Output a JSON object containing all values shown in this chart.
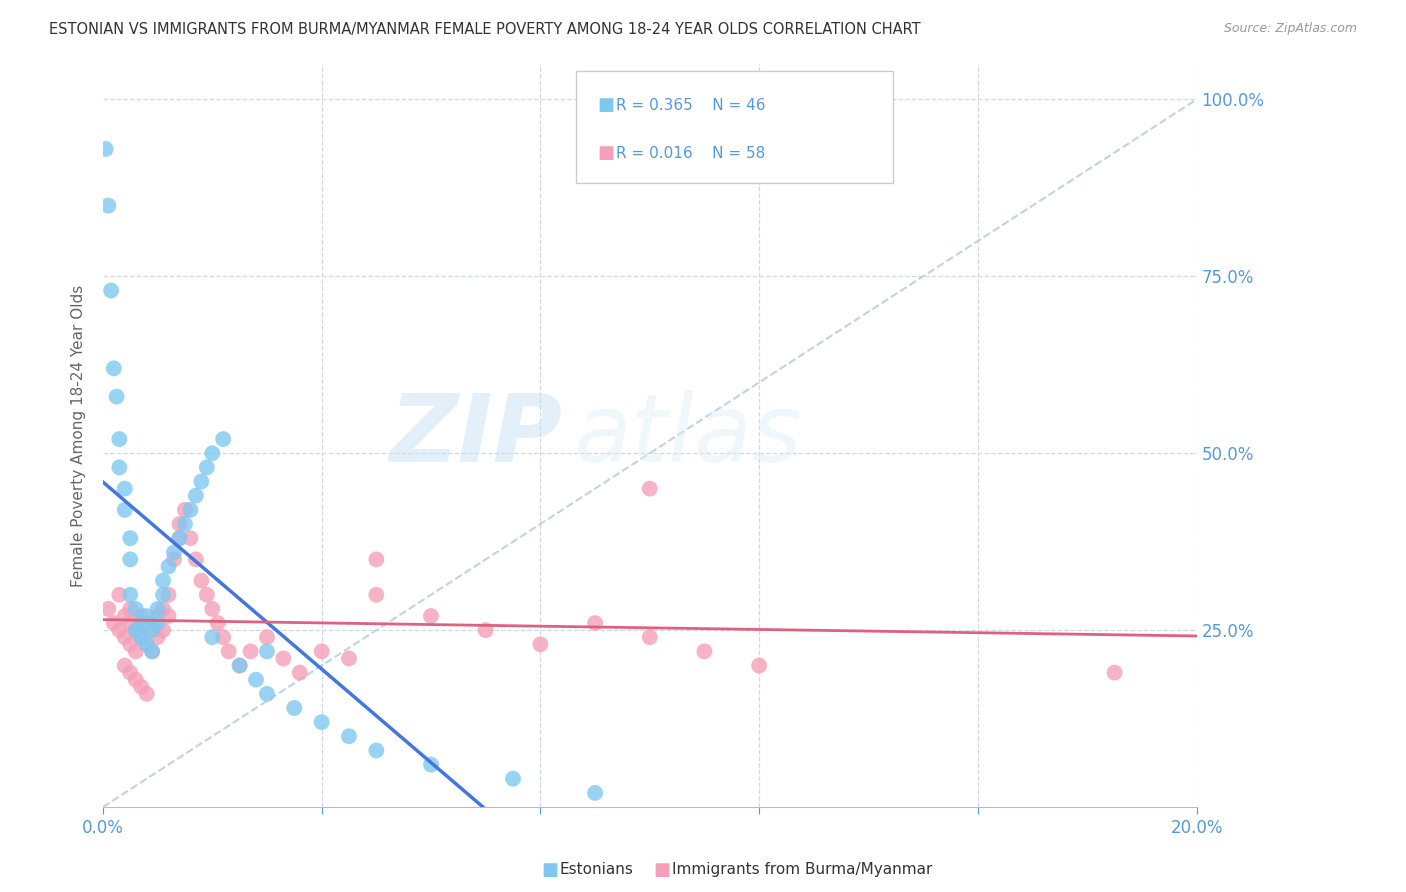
{
  "title": "ESTONIAN VS IMMIGRANTS FROM BURMA/MYANMAR FEMALE POVERTY AMONG 18-24 YEAR OLDS CORRELATION CHART",
  "source": "Source: ZipAtlas.com",
  "ylabel": "Female Poverty Among 18-24 Year Olds",
  "right_yticks": [
    "100.0%",
    "75.0%",
    "50.0%",
    "25.0%"
  ],
  "right_ytick_vals": [
    1.0,
    0.75,
    0.5,
    0.25
  ],
  "watermark_zip": "ZIP",
  "watermark_atlas": "atlas",
  "legend_r1": "R = 0.365",
  "legend_n1": "N = 46",
  "legend_r2": "R = 0.016",
  "legend_n2": "N = 58",
  "blue_color": "#7ec8f0",
  "pink_color": "#f5a0b8",
  "line_blue": "#4477dd",
  "line_pink": "#e06080",
  "line_dashed_color": "#b8cfe0",
  "text_blue": "#5599dd",
  "title_color": "#333333",
  "xmin": 0.0,
  "xmax": 0.2,
  "ymin": 0.0,
  "ymax": 1.05,
  "estonian_x": [
    0.0005,
    0.001,
    0.0015,
    0.002,
    0.0025,
    0.003,
    0.003,
    0.004,
    0.004,
    0.005,
    0.005,
    0.005,
    0.006,
    0.006,
    0.007,
    0.007,
    0.008,
    0.008,
    0.009,
    0.009,
    0.01,
    0.01,
    0.011,
    0.011,
    0.012,
    0.013,
    0.014,
    0.015,
    0.016,
    0.017,
    0.018,
    0.019,
    0.02,
    0.022,
    0.025,
    0.028,
    0.03,
    0.035,
    0.04,
    0.045,
    0.05,
    0.06,
    0.075,
    0.09,
    0.03,
    0.02
  ],
  "estonian_y": [
    0.93,
    0.85,
    0.73,
    0.62,
    0.58,
    0.52,
    0.48,
    0.45,
    0.42,
    0.38,
    0.35,
    0.3,
    0.28,
    0.25,
    0.26,
    0.24,
    0.27,
    0.23,
    0.25,
    0.22,
    0.26,
    0.28,
    0.3,
    0.32,
    0.34,
    0.36,
    0.38,
    0.4,
    0.42,
    0.44,
    0.46,
    0.48,
    0.5,
    0.52,
    0.2,
    0.18,
    0.16,
    0.14,
    0.12,
    0.1,
    0.08,
    0.06,
    0.04,
    0.02,
    0.22,
    0.24
  ],
  "burma_x": [
    0.001,
    0.002,
    0.003,
    0.003,
    0.004,
    0.004,
    0.005,
    0.005,
    0.005,
    0.006,
    0.006,
    0.007,
    0.007,
    0.008,
    0.008,
    0.009,
    0.009,
    0.01,
    0.01,
    0.011,
    0.011,
    0.012,
    0.012,
    0.013,
    0.014,
    0.014,
    0.015,
    0.016,
    0.017,
    0.018,
    0.019,
    0.02,
    0.021,
    0.022,
    0.023,
    0.025,
    0.027,
    0.03,
    0.033,
    0.036,
    0.04,
    0.045,
    0.05,
    0.06,
    0.07,
    0.08,
    0.09,
    0.1,
    0.11,
    0.12,
    0.004,
    0.005,
    0.006,
    0.007,
    0.008,
    0.185,
    0.1,
    0.05
  ],
  "burma_y": [
    0.28,
    0.26,
    0.3,
    0.25,
    0.27,
    0.24,
    0.28,
    0.26,
    0.23,
    0.25,
    0.22,
    0.27,
    0.24,
    0.26,
    0.23,
    0.25,
    0.22,
    0.27,
    0.24,
    0.28,
    0.25,
    0.3,
    0.27,
    0.35,
    0.38,
    0.4,
    0.42,
    0.38,
    0.35,
    0.32,
    0.3,
    0.28,
    0.26,
    0.24,
    0.22,
    0.2,
    0.22,
    0.24,
    0.21,
    0.19,
    0.22,
    0.21,
    0.3,
    0.27,
    0.25,
    0.23,
    0.26,
    0.24,
    0.22,
    0.2,
    0.2,
    0.19,
    0.18,
    0.17,
    0.16,
    0.19,
    0.45,
    0.35
  ]
}
